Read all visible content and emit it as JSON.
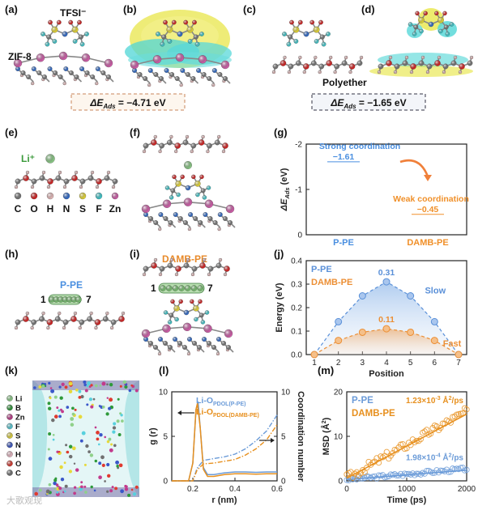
{
  "panels": {
    "a": "(a)",
    "b": "(b)",
    "c": "(c)",
    "d": "(d)",
    "e": "(e)",
    "f": "(f)",
    "g": "(g)",
    "h": "(h)",
    "i": "(i)",
    "j": "(j)",
    "k": "(k)",
    "l": "(l)",
    "m": "(m)"
  },
  "top": {
    "tfsi_label": "TFSI⁻",
    "zif8_label": "ZIF-8",
    "polyether_label": "Polyether",
    "dE_left": "ΔE",
    "dE_left_sub": "Ads",
    "dE_left_val": " = −4.71 eV",
    "dE_right": "ΔE",
    "dE_right_sub": "Ads",
    "dE_right_val": " = −1.65 eV"
  },
  "legend_e": {
    "li_label": "Li⁺",
    "elements": [
      {
        "sym": "C",
        "color": "#7a7a7a"
      },
      {
        "sym": "O",
        "color": "#e02020"
      },
      {
        "sym": "H",
        "color": "#f4c4c4"
      },
      {
        "sym": "N",
        "color": "#2f6fd6"
      },
      {
        "sym": "S",
        "color": "#f2e233"
      },
      {
        "sym": "F",
        "color": "#3fd3d8"
      },
      {
        "sym": "Zn",
        "color": "#d960b0"
      }
    ]
  },
  "panel_h": {
    "title": "P-PE",
    "start": "1",
    "end": "7"
  },
  "panel_i": {
    "title": "DAMB-PE",
    "start": "1",
    "end": "7"
  },
  "panel_k": {
    "legend": [
      {
        "sym": "Li",
        "color": "#8fd18a"
      },
      {
        "sym": "B",
        "color": "#2e9a3a"
      },
      {
        "sym": "Zn",
        "color": "#c23a8c"
      },
      {
        "sym": "F",
        "color": "#58d0dd"
      },
      {
        "sym": "S",
        "color": "#e7d93a"
      },
      {
        "sym": "N",
        "color": "#3a57c9"
      },
      {
        "sym": "H",
        "color": "#f0bcc8"
      },
      {
        "sym": "O",
        "color": "#e03a30"
      },
      {
        "sym": "C",
        "color": "#707070"
      }
    ]
  },
  "watermark": "大歌观现",
  "chart_data": [
    {
      "id": "g",
      "type": "bar",
      "categories": [
        "P-PE",
        "DAMB-PE"
      ],
      "values": [
        -1.61,
        -0.45
      ],
      "ylabel": "ΔE",
      "ylabel_sub": "Ads",
      "ylabel_unit": " (eV)",
      "ylim": [
        -2,
        0
      ],
      "yticks": [
        "0",
        "-1",
        "-2"
      ],
      "yticks_values": [
        0,
        -1,
        -2
      ],
      "reversed_y": true,
      "colors": [
        "#4a8fe0",
        "#f0902a"
      ],
      "annotations": [
        {
          "text": "Strong coordination",
          "color": "#4a8fe0"
        },
        {
          "text": "Weak coordination",
          "color": "#f0902a"
        }
      ],
      "data_labels": [
        "−1.61",
        "−0.45"
      ]
    },
    {
      "id": "j",
      "type": "line",
      "x": [
        1,
        2,
        3,
        4,
        5,
        6,
        7
      ],
      "series": [
        {
          "name": "P-PE",
          "values": [
            0,
            0.14,
            0.25,
            0.31,
            0.25,
            0.14,
            0
          ],
          "color": "#5a90d8"
        },
        {
          "name": "DAMB-PE",
          "values": [
            0,
            0.06,
            0.095,
            0.11,
            0.095,
            0.06,
            0
          ],
          "color": "#ec8f35"
        }
      ],
      "xlabel": "Position",
      "ylabel": "Energy (eV)",
      "ylim": [
        0,
        0.4
      ],
      "yticks": [
        "0.0",
        "0.1",
        "0.2",
        "0.3",
        "0.4"
      ],
      "yticks_values": [
        0,
        0.1,
        0.2,
        0.3,
        0.4
      ],
      "xticks": [
        "1",
        "2",
        "3",
        "4",
        "5",
        "6",
        "7"
      ],
      "data_labels": [
        "0.31",
        "0.11"
      ],
      "annotations": [
        {
          "text": "Slow",
          "color": "#5a90d8"
        },
        {
          "text": "Fast",
          "color": "#ec8f35"
        }
      ]
    },
    {
      "id": "l",
      "type": "line",
      "x_range": [
        0.1,
        0.6
      ],
      "xticks": [
        "0.2",
        "0.4",
        "0.6"
      ],
      "xticks_values": [
        0.2,
        0.4,
        0.6
      ],
      "xlabel": "r (nm)",
      "ylabel": "g (r)",
      "ylabel_right": "Coordination number",
      "ylim": [
        0,
        10
      ],
      "yticks": [
        "0",
        "5",
        "10"
      ],
      "yticks_values": [
        0,
        5,
        10
      ],
      "ylim_right": [
        0,
        10
      ],
      "series": [
        {
          "name": "Li-O",
          "name_sub": "PDOL(P-PE)",
          "color": "#6b9bd8",
          "gr": [
            [
              0.1,
              0
            ],
            [
              0.18,
              0
            ],
            [
              0.2,
              2
            ],
            [
              0.215,
              8
            ],
            [
              0.225,
              8.9
            ],
            [
              0.235,
              6
            ],
            [
              0.25,
              1.5
            ],
            [
              0.27,
              0.7
            ],
            [
              0.3,
              0.7
            ],
            [
              0.35,
              0.9
            ],
            [
              0.4,
              1.0
            ],
            [
              0.45,
              1.0
            ],
            [
              0.5,
              0.95
            ],
            [
              0.55,
              1.0
            ],
            [
              0.6,
              1.0
            ]
          ],
          "cn": [
            [
              0.1,
              0
            ],
            [
              0.2,
              0
            ],
            [
              0.22,
              1.4
            ],
            [
              0.25,
              2.3
            ],
            [
              0.3,
              2.5
            ],
            [
              0.35,
              2.7
            ],
            [
              0.4,
              3.0
            ],
            [
              0.45,
              3.6
            ],
            [
              0.5,
              4.5
            ],
            [
              0.55,
              5.6
            ],
            [
              0.6,
              7.4
            ]
          ]
        },
        {
          "name": "Li-O",
          "name_sub": "PDOL(DAMB-PE)",
          "color": "#e7901f",
          "gr": [
            [
              0.1,
              0
            ],
            [
              0.18,
              0
            ],
            [
              0.2,
              2
            ],
            [
              0.215,
              8
            ],
            [
              0.222,
              8.7
            ],
            [
              0.235,
              6
            ],
            [
              0.25,
              1.3
            ],
            [
              0.27,
              0.5
            ],
            [
              0.3,
              0.5
            ],
            [
              0.35,
              0.7
            ],
            [
              0.4,
              0.8
            ],
            [
              0.45,
              0.8
            ],
            [
              0.5,
              0.75
            ],
            [
              0.55,
              0.8
            ],
            [
              0.6,
              0.8
            ]
          ],
          "cn": [
            [
              0.1,
              0
            ],
            [
              0.2,
              0
            ],
            [
              0.22,
              1.2
            ],
            [
              0.25,
              1.9
            ],
            [
              0.3,
              2.0
            ],
            [
              0.35,
              2.2
            ],
            [
              0.4,
              2.4
            ],
            [
              0.45,
              2.9
            ],
            [
              0.5,
              3.6
            ],
            [
              0.55,
              4.6
            ],
            [
              0.6,
              6.3
            ]
          ]
        }
      ]
    },
    {
      "id": "m",
      "type": "scatter",
      "xlabel": "Time (ps)",
      "ylabel": "MSD (Å",
      "ylabel_sup": "2",
      "ylabel_end": ")",
      "xlim": [
        0,
        2000
      ],
      "ylim": [
        0,
        20
      ],
      "xticks": [
        "0",
        "1000",
        "2000"
      ],
      "xticks_values": [
        0,
        1000,
        2000
      ],
      "yticks": [
        "0",
        "10",
        "20"
      ],
      "yticks_values": [
        0,
        10,
        20
      ],
      "series": [
        {
          "name": "P-PE",
          "color": "#6b9bd8",
          "slope_text": "1.98×10",
          "slope_exp": "-4",
          "slope_unit": " Å",
          "slope_unit_sup": "2",
          "slope_unit_end": "/ps",
          "msd_end": 2.4
        },
        {
          "name": "DAMB-PE",
          "color": "#e7901f",
          "slope_text": "1.23×10",
          "slope_exp": "-3",
          "slope_unit": " Å",
          "slope_unit_sup": "2",
          "slope_unit_end": "/ps",
          "msd_end": 15.0
        }
      ]
    }
  ]
}
